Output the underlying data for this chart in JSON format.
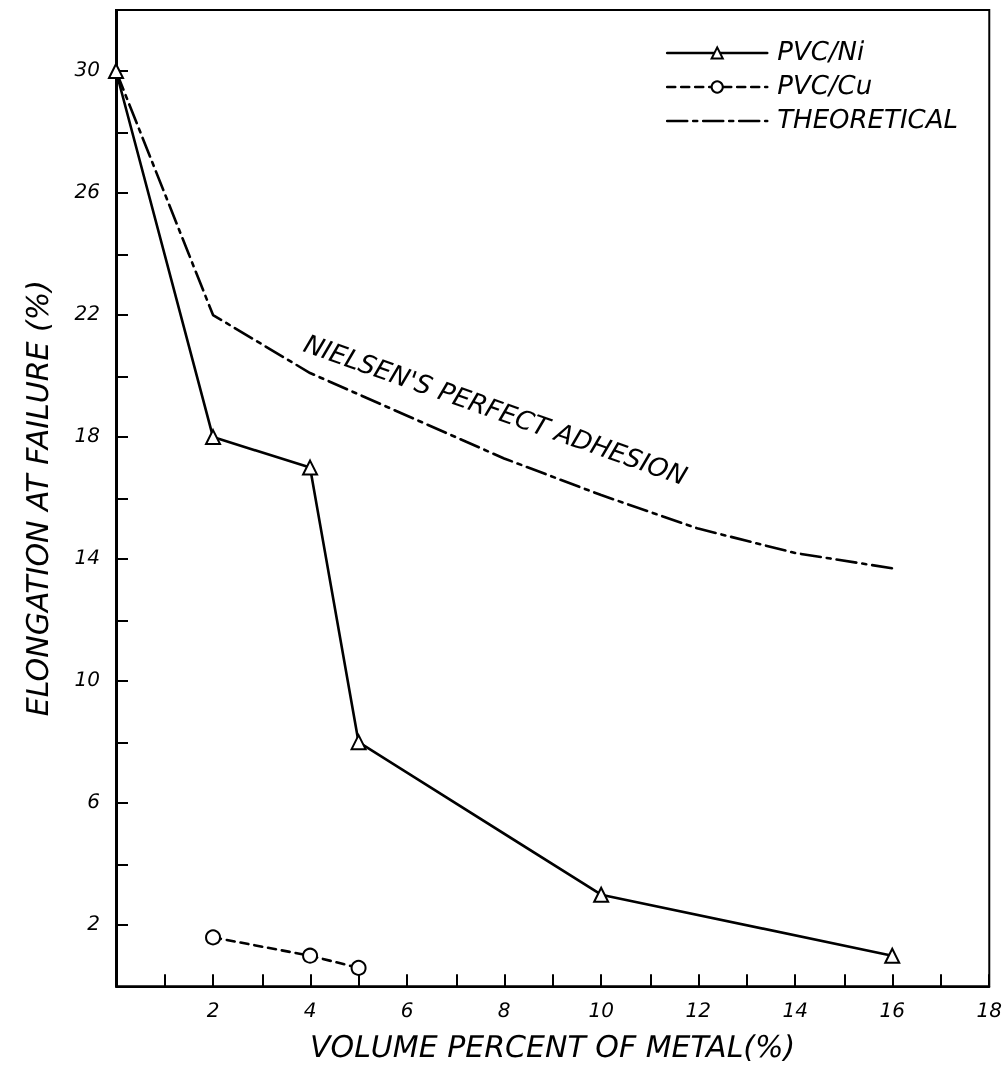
{
  "chart_data": {
    "type": "line",
    "xlabel": "VOLUME PERCENT OF METAL(%)",
    "ylabel": "ELONGATION AT FAILURE (%)",
    "annotations": [
      "NIELSEN'S PERFECT ADHESION"
    ],
    "xlim": [
      0,
      18
    ],
    "xticks": [
      {
        "value": 1,
        "label": null
      },
      2,
      {
        "value": 3,
        "label": null
      },
      4,
      {
        "value": 5,
        "label": null
      },
      6,
      {
        "value": 7,
        "label": null
      },
      8,
      {
        "value": 9,
        "label": null
      },
      10,
      {
        "value": 11,
        "label": null
      },
      12,
      {
        "value": 13,
        "label": null
      },
      14,
      {
        "value": 15,
        "label": null
      },
      16,
      {
        "value": 17,
        "label": null
      },
      18
    ],
    "ylim": [
      0,
      32
    ],
    "yticks": [
      2,
      {
        "value": 4,
        "label": null
      },
      6,
      {
        "value": 8,
        "label": null
      },
      10,
      {
        "value": 12,
        "label": null
      },
      14,
      {
        "value": 16,
        "label": null
      },
      18,
      {
        "value": 20,
        "label": null
      },
      22,
      {
        "value": 24,
        "label": null
      },
      26,
      {
        "value": 28,
        "label": null
      },
      30
    ],
    "grid": false,
    "legend": "top right",
    "series": [
      {
        "name": "PVC/Ni",
        "color": "#000000",
        "marker": "triangle",
        "line_style": "solid",
        "x": [
          0,
          2,
          4,
          5,
          10,
          16
        ],
        "values": [
          30,
          18,
          17,
          8,
          3,
          1
        ]
      },
      {
        "name": "PVC/Cu",
        "color": "#000000",
        "marker": "circle",
        "line_style": "dashed",
        "x": [
          2,
          4,
          5
        ],
        "values": [
          1.6,
          1,
          0.6
        ]
      },
      {
        "name": "THEORETICAL",
        "color": "#000000",
        "marker": "none",
        "line_style": "dashdot",
        "x": [
          0,
          1,
          2,
          4,
          6,
          8,
          10,
          12,
          14,
          16
        ],
        "values": [
          30,
          26,
          22,
          20.1,
          18.7,
          17.3,
          16.1,
          15,
          14.2,
          13.7
        ]
      }
    ]
  }
}
